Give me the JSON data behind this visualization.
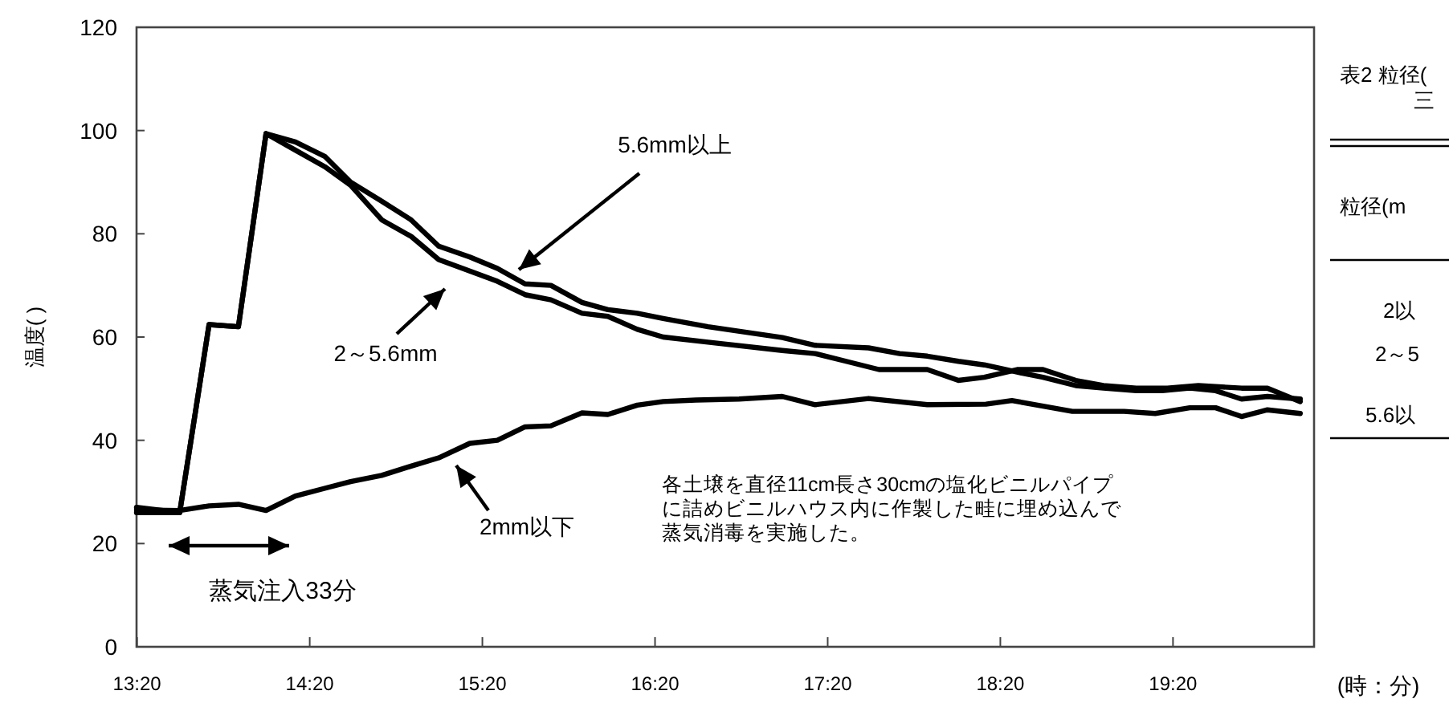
{
  "chart_data": {
    "type": "line",
    "ylabel": "温度( )",
    "xlabel": "(時：分)",
    "xlim": [
      13.33,
      20.15
    ],
    "ylim": [
      0,
      120
    ],
    "xticks": [
      {
        "value": 13.333,
        "label": "13:20"
      },
      {
        "value": 14.333,
        "label": "14:20"
      },
      {
        "value": 15.333,
        "label": "15:20"
      },
      {
        "value": 16.333,
        "label": "16:20"
      },
      {
        "value": 17.333,
        "label": "17:20"
      },
      {
        "value": 18.333,
        "label": "18:20"
      },
      {
        "value": 19.333,
        "label": "19:20"
      }
    ],
    "yticks": [
      0,
      20,
      40,
      60,
      80,
      100,
      120
    ],
    "marker": "none",
    "line_style": "solid",
    "series": [
      {
        "color": "#000000",
        "x": [
          13.33,
          13.58,
          13.75,
          13.92,
          14.08,
          14.25,
          14.42,
          14.57,
          14.75,
          14.92,
          15.08,
          15.26,
          15.42,
          15.58,
          15.73,
          15.91,
          16.06,
          16.23,
          16.38,
          16.64,
          17.07,
          17.26,
          17.57,
          17.75,
          17.91,
          18.09,
          18.24,
          18.43,
          18.58,
          18.77,
          18.93,
          19.12,
          19.27,
          19.43,
          19.58,
          19.73,
          19.88,
          20.07
        ],
        "values": [
          27,
          26,
          62.4,
          62,
          99.4,
          97.8,
          95,
          90,
          86.3,
          82.7,
          77.6,
          75.5,
          73.3,
          70.3,
          70,
          66.7,
          65.3,
          64.6,
          63.6,
          62,
          59.9,
          58.4,
          57.9,
          56.8,
          56.3,
          55.3,
          54.6,
          53.2,
          52.2,
          50.6,
          50.1,
          49.6,
          49.6,
          50.1,
          49.6,
          48,
          48.5,
          48
        ]
      },
      {
        "color": "#000000",
        "x": [
          13.33,
          13.58,
          13.75,
          13.92,
          14.08,
          14.25,
          14.42,
          14.57,
          14.75,
          14.92,
          15.08,
          15.26,
          15.42,
          15.58,
          15.73,
          15.91,
          16.06,
          16.23,
          16.38,
          16.64,
          17.07,
          17.26,
          17.44,
          17.63,
          17.91,
          18.09,
          18.24,
          18.43,
          18.58,
          18.77,
          18.93,
          19.12,
          19.3,
          19.48,
          19.73,
          19.88,
          20.07
        ],
        "values": [
          26,
          26,
          62.4,
          62,
          99.4,
          96.2,
          93,
          89.4,
          82.7,
          79.5,
          75,
          72.8,
          70.8,
          68.2,
          67.2,
          64.6,
          64,
          61.5,
          60,
          59,
          57.4,
          56.8,
          55.3,
          53.7,
          53.7,
          51.6,
          52.2,
          53.7,
          53.7,
          51.6,
          50.6,
          50.1,
          50.1,
          50.6,
          50.1,
          50.1,
          47.5
        ]
      },
      {
        "color": "#000000",
        "x": [
          13.33,
          13.58,
          13.75,
          13.92,
          14.08,
          14.25,
          14.42,
          14.57,
          14.75,
          14.92,
          15.08,
          15.26,
          15.42,
          15.58,
          15.73,
          15.91,
          16.06,
          16.23,
          16.38,
          16.57,
          16.82,
          17.07,
          17.26,
          17.57,
          17.91,
          18.25,
          18.4,
          18.75,
          19.05,
          19.23,
          19.43,
          19.58,
          19.73,
          19.88,
          20.07
        ],
        "values": [
          26.5,
          26.4,
          27.3,
          27.6,
          26.4,
          29.2,
          30.7,
          32,
          33.2,
          35,
          36.6,
          39.4,
          40,
          42.6,
          42.8,
          45.3,
          45,
          46.8,
          47.5,
          47.8,
          48,
          48.5,
          46.9,
          48.1,
          46.9,
          47,
          47.7,
          45.6,
          45.6,
          45.2,
          46.3,
          46.3,
          44.6,
          45.9,
          45.2
        ]
      }
    ],
    "annotations": [
      "5.6mm以上",
      "2～5.6mm",
      "2mm以下",
      "蒸気注入33分",
      "各土壌を直径11cm長さ30cmの塩化ビニルパイプ",
      "に詰めビニルハウス内に作製した畦に埋め込んで",
      "蒸気消毒を実施した。",
      "表2 粒径(",
      "三",
      "粒径(m",
      "2以",
      "2～5",
      "5.6以"
    ]
  }
}
